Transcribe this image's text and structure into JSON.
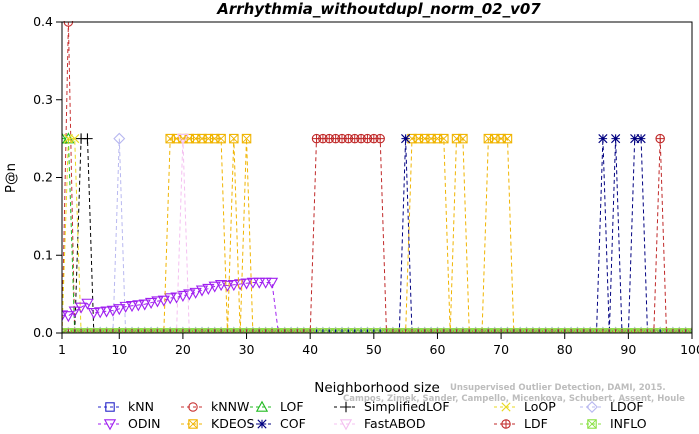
{
  "chart_data": {
    "type": "line",
    "title": "Arrhythmia_withoutdupl_norm_02_v07",
    "xlabel": "Neighborhood size",
    "ylabel": "P@n",
    "xlim": [
      1,
      100
    ],
    "ylim": [
      0,
      0.4
    ],
    "xticks": [
      1,
      10,
      20,
      30,
      40,
      50,
      60,
      70,
      80,
      90,
      100
    ],
    "yticks": [
      0.0,
      0.1,
      0.2,
      0.3,
      0.4
    ],
    "ytick_labels": [
      "0.0",
      "0.1",
      "0.2",
      "0.3",
      "0.4"
    ],
    "grid": false,
    "legend_position": "bottom",
    "watermark": "Campos, Zimek, Sander, Campello, Micenkova, Schubert, Assent, Houle Unsupervised Outlier Detection, DAMI, 2015.",
    "watermark_line1": "Unsupervised Outlier Detection, DAMI, 2015.",
    "watermark_line2": "Campos, Zimek, Sander, Campello, Micenkova, Schubert, Assent, Houle",
    "series": [
      {
        "name": "kNN",
        "color": "#2424c8",
        "marker": "square",
        "points": [
          [
            1,
            0
          ],
          [
            100,
            0
          ]
        ]
      },
      {
        "name": "kNNW",
        "color": "#c83232",
        "marker": "circle",
        "points": [
          [
            1,
            0
          ],
          [
            2,
            0.4
          ],
          [
            3,
            0
          ],
          [
            100,
            0
          ]
        ]
      },
      {
        "name": "LOF",
        "color": "#22bb22",
        "marker": "triangle-up",
        "points": [
          [
            1,
            0.25
          ],
          [
            2,
            0.25
          ],
          [
            3,
            0
          ],
          [
            100,
            0
          ]
        ]
      },
      {
        "name": "SimplifiedLOF",
        "color": "#000000",
        "marker": "plus",
        "points": [
          [
            1,
            0
          ],
          [
            3,
            0
          ],
          [
            4,
            0.25
          ],
          [
            5,
            0.25
          ],
          [
            6,
            0
          ],
          [
            100,
            0
          ]
        ]
      },
      {
        "name": "LoOP",
        "color": "#e8d820",
        "marker": "x",
        "points": [
          [
            1,
            0
          ],
          [
            2,
            0.25
          ],
          [
            3,
            0.25
          ],
          [
            4,
            0
          ],
          [
            100,
            0
          ]
        ]
      },
      {
        "name": "LDOF",
        "color": "#b8b8f0",
        "marker": "diamond",
        "points": [
          [
            1,
            0
          ],
          [
            9,
            0
          ],
          [
            10,
            0.25
          ],
          [
            11,
            0
          ],
          [
            100,
            0
          ]
        ]
      },
      {
        "name": "ODIN",
        "color": "#a020f0",
        "marker": "triangle-down",
        "points": [
          [
            1,
            0.023
          ],
          [
            2,
            0.022
          ],
          [
            3,
            0.028
          ],
          [
            4,
            0.033
          ],
          [
            5,
            0.038
          ],
          [
            6,
            0.026
          ],
          [
            7,
            0.027
          ],
          [
            8,
            0.028
          ],
          [
            9,
            0.029
          ],
          [
            10,
            0.031
          ],
          [
            11,
            0.034
          ],
          [
            12,
            0.035
          ],
          [
            13,
            0.036
          ],
          [
            14,
            0.037
          ],
          [
            15,
            0.039
          ],
          [
            16,
            0.041
          ],
          [
            17,
            0.042
          ],
          [
            18,
            0.045
          ],
          [
            19,
            0.046
          ],
          [
            20,
            0.048
          ],
          [
            21,
            0.05
          ],
          [
            22,
            0.052
          ],
          [
            23,
            0.055
          ],
          [
            24,
            0.057
          ],
          [
            25,
            0.06
          ],
          [
            26,
            0.062
          ],
          [
            27,
            0.061
          ],
          [
            28,
            0.062
          ],
          [
            29,
            0.063
          ],
          [
            30,
            0.064
          ],
          [
            31,
            0.065
          ],
          [
            32,
            0.065
          ],
          [
            33,
            0.065
          ],
          [
            34,
            0.065
          ],
          [
            35,
            0
          ],
          [
            100,
            0
          ]
        ]
      },
      {
        "name": "KDEOS",
        "color": "#f0b400",
        "marker": "square-x",
        "points": [
          [
            1,
            0
          ],
          [
            17,
            0
          ],
          [
            18,
            0.25
          ],
          [
            19,
            0.25
          ],
          [
            20,
            0.25
          ],
          [
            21,
            0.25
          ],
          [
            22,
            0.25
          ],
          [
            23,
            0.25
          ],
          [
            24,
            0.25
          ],
          [
            25,
            0.25
          ],
          [
            26,
            0.25
          ],
          [
            27,
            0
          ],
          [
            28,
            0.25
          ],
          [
            29,
            0
          ],
          [
            30,
            0.25
          ],
          [
            31,
            0
          ],
          [
            55,
            0
          ],
          [
            56,
            0.25
          ],
          [
            57,
            0.25
          ],
          [
            58,
            0.25
          ],
          [
            59,
            0.25
          ],
          [
            60,
            0.25
          ],
          [
            61,
            0.25
          ],
          [
            62,
            0
          ],
          [
            63,
            0.25
          ],
          [
            64,
            0.25
          ],
          [
            65,
            0
          ],
          [
            67,
            0
          ],
          [
            68,
            0.25
          ],
          [
            69,
            0.25
          ],
          [
            70,
            0.25
          ],
          [
            71,
            0.25
          ],
          [
            72,
            0
          ],
          [
            100,
            0
          ]
        ]
      },
      {
        "name": "COF",
        "color": "#000080",
        "marker": "asterisk",
        "points": [
          [
            1,
            0
          ],
          [
            54,
            0
          ],
          [
            55,
            0.25
          ],
          [
            56,
            0
          ],
          [
            85,
            0
          ],
          [
            86,
            0.25
          ],
          [
            87,
            0
          ],
          [
            88,
            0.25
          ],
          [
            89,
            0
          ],
          [
            90,
            0
          ],
          [
            91,
            0.25
          ],
          [
            92,
            0.25
          ],
          [
            93,
            0
          ],
          [
            100,
            0
          ]
        ]
      },
      {
        "name": "FastABOD",
        "color": "#f4c0f0",
        "marker": "triangle-down",
        "points": [
          [
            1,
            0
          ],
          [
            19,
            0
          ],
          [
            20,
            0.25
          ],
          [
            21,
            0
          ],
          [
            100,
            0
          ]
        ]
      },
      {
        "name": "LDF",
        "color": "#c02828",
        "marker": "circle-plus",
        "points": [
          [
            1,
            0
          ],
          [
            40,
            0
          ],
          [
            41,
            0.25
          ],
          [
            42,
            0.25
          ],
          [
            43,
            0.25
          ],
          [
            44,
            0.25
          ],
          [
            45,
            0.25
          ],
          [
            46,
            0.25
          ],
          [
            47,
            0.25
          ],
          [
            48,
            0.25
          ],
          [
            49,
            0.25
          ],
          [
            50,
            0.25
          ],
          [
            51,
            0.25
          ],
          [
            52,
            0
          ],
          [
            94,
            0
          ],
          [
            95,
            0.25
          ],
          [
            96,
            0
          ],
          [
            100,
            0
          ]
        ]
      },
      {
        "name": "INFLO",
        "color": "#88e040",
        "marker": "square-x",
        "points": [
          [
            1,
            0
          ],
          [
            100,
            0
          ]
        ]
      }
    ]
  }
}
